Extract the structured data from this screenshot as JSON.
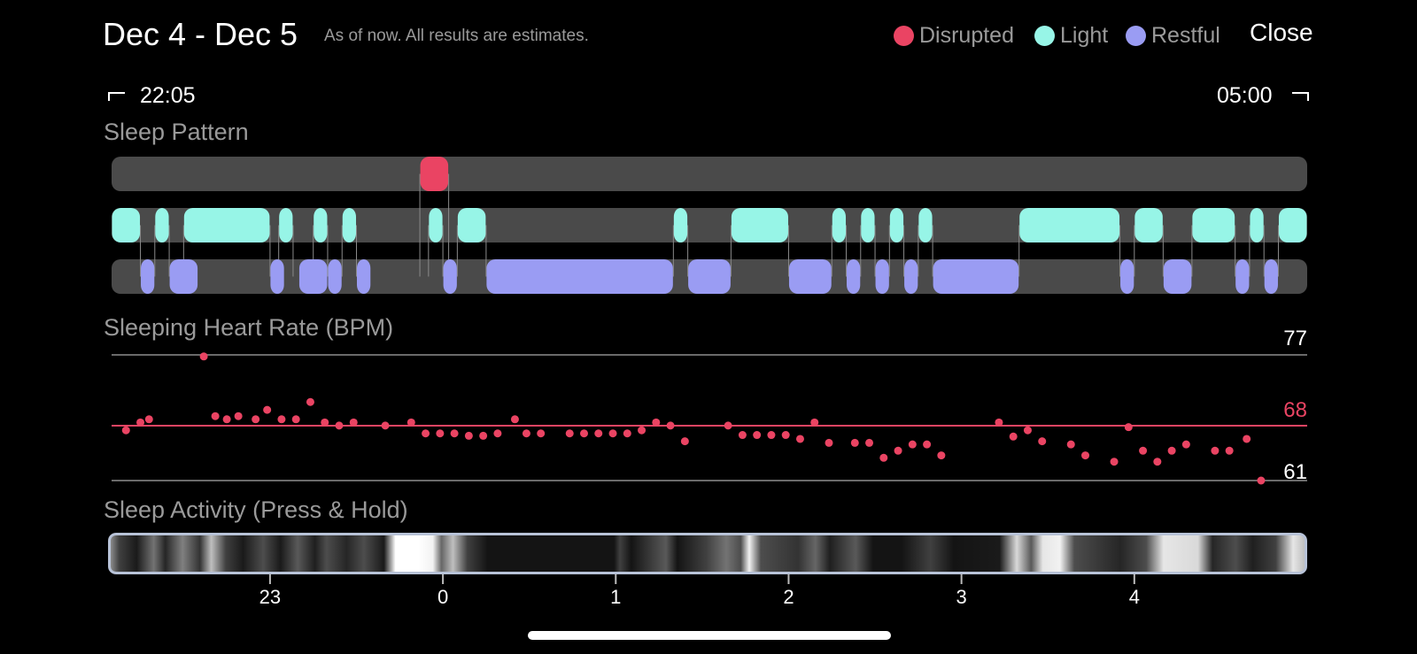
{
  "header": {
    "title": "Dec 4 - Dec 5",
    "subtitle": "As of now. All results are estimates.",
    "close_label": "Close"
  },
  "legend": [
    {
      "label": "Disrupted",
      "color": "#ea4463"
    },
    {
      "label": "Light",
      "color": "#97f5e7"
    },
    {
      "label": "Restful",
      "color": "#9a9cf3"
    }
  ],
  "time_range": {
    "start": "22:05",
    "end": "05:00",
    "start_icon": "bracket-start-icon",
    "end_icon": "bracket-end-icon"
  },
  "sections": {
    "sleep_pattern": "Sleep Pattern",
    "heart_rate": "Sleeping Heart Rate (BPM)",
    "activity": "Sleep Activity (Press & Hold)"
  },
  "sleep_pattern": {
    "start_min": -115,
    "end_min": 300,
    "disrupted": [
      [
        -8,
        2
      ]
    ],
    "light": [
      [
        -115,
        -105
      ],
      [
        -100,
        -95
      ],
      [
        -90,
        -60
      ],
      [
        -57,
        -52
      ],
      [
        -45,
        -40
      ],
      [
        -35,
        -30
      ],
      [
        -5,
        0
      ],
      [
        5,
        15
      ],
      [
        80,
        85
      ],
      [
        100,
        120
      ],
      [
        135,
        140
      ],
      [
        145,
        150
      ],
      [
        155,
        160
      ],
      [
        165,
        170
      ],
      [
        200,
        235
      ],
      [
        240,
        250
      ],
      [
        260,
        275
      ],
      [
        280,
        285
      ],
      [
        290,
        300
      ]
    ],
    "restful": [
      [
        -105,
        -100
      ],
      [
        -95,
        -85
      ],
      [
        -60,
        -55
      ],
      [
        -50,
        -40
      ],
      [
        -40,
        -35
      ],
      [
        -30,
        -25
      ],
      [
        0,
        5
      ],
      [
        15,
        80
      ],
      [
        85,
        100
      ],
      [
        120,
        135
      ],
      [
        140,
        145
      ],
      [
        150,
        155
      ],
      [
        160,
        165
      ],
      [
        170,
        200
      ],
      [
        235,
        240
      ],
      [
        250,
        260
      ],
      [
        275,
        280
      ],
      [
        285,
        290
      ]
    ]
  },
  "heart_rate": {
    "ymax": 77,
    "avg": 68,
    "ymin": 61,
    "ymax_label": "77",
    "avg_label": "68",
    "ymin_label": "61",
    "points": [
      [
        -110,
        67.4
      ],
      [
        -105,
        68.4
      ],
      [
        -102,
        68.8
      ],
      [
        -83,
        76.8
      ],
      [
        -79,
        69.2
      ],
      [
        -75,
        68.8
      ],
      [
        -71,
        69.2
      ],
      [
        -65,
        68.8
      ],
      [
        -61,
        70.0
      ],
      [
        -56,
        68.8
      ],
      [
        -51,
        68.8
      ],
      [
        -46,
        71.0
      ],
      [
        -41,
        68.4
      ],
      [
        -36,
        68.0
      ],
      [
        -31,
        68.4
      ],
      [
        -20,
        68.0
      ],
      [
        -11,
        68.4
      ],
      [
        -6,
        67.0
      ],
      [
        -1,
        67.0
      ],
      [
        4,
        67.0
      ],
      [
        9,
        66.7
      ],
      [
        14,
        66.7
      ],
      [
        19,
        67.0
      ],
      [
        25,
        68.8
      ],
      [
        29,
        67.0
      ],
      [
        34,
        67.0
      ],
      [
        44,
        67.0
      ],
      [
        49,
        67.0
      ],
      [
        54,
        67.0
      ],
      [
        59,
        67.0
      ],
      [
        64,
        67.0
      ],
      [
        69,
        67.4
      ],
      [
        74,
        68.4
      ],
      [
        79,
        68.0
      ],
      [
        84,
        66.0
      ],
      [
        99,
        68.0
      ],
      [
        104,
        66.8
      ],
      [
        109,
        66.8
      ],
      [
        114,
        66.8
      ],
      [
        119,
        66.8
      ],
      [
        124,
        66.3
      ],
      [
        129,
        68.4
      ],
      [
        134,
        65.8
      ],
      [
        143,
        65.8
      ],
      [
        148,
        65.8
      ],
      [
        153,
        63.9
      ],
      [
        158,
        64.8
      ],
      [
        163,
        65.6
      ],
      [
        168,
        65.6
      ],
      [
        173,
        64.2
      ],
      [
        193,
        68.4
      ],
      [
        198,
        66.6
      ],
      [
        203,
        67.4
      ],
      [
        208,
        66.0
      ],
      [
        218,
        65.6
      ],
      [
        223,
        64.2
      ],
      [
        233,
        63.4
      ],
      [
        238,
        67.8
      ],
      [
        243,
        64.8
      ],
      [
        248,
        63.4
      ],
      [
        253,
        64.8
      ],
      [
        258,
        65.6
      ],
      [
        268,
        64.8
      ],
      [
        273,
        64.8
      ],
      [
        279,
        66.3
      ],
      [
        284,
        61.0
      ]
    ]
  },
  "activity": {
    "ticks": [
      {
        "min": -60,
        "label": "23"
      },
      {
        "min": 0,
        "label": "0"
      },
      {
        "min": 60,
        "label": "1"
      },
      {
        "min": 120,
        "label": "2"
      },
      {
        "min": 180,
        "label": "3"
      },
      {
        "min": 240,
        "label": "4"
      }
    ],
    "intensity": [
      [
        -115,
        0.55
      ],
      [
        -112,
        0.25
      ],
      [
        -106,
        0.1
      ],
      [
        -100,
        0.45
      ],
      [
        -96,
        0.15
      ],
      [
        -90,
        0.5
      ],
      [
        -84,
        0.2
      ],
      [
        -80,
        0.75
      ],
      [
        -75,
        0.25
      ],
      [
        -69,
        0.1
      ],
      [
        -62,
        0.3
      ],
      [
        -56,
        0.1
      ],
      [
        -50,
        0.35
      ],
      [
        -44,
        0.12
      ],
      [
        -40,
        0.3
      ],
      [
        -33,
        0.15
      ],
      [
        -27,
        0.3
      ],
      [
        -20,
        0.1
      ],
      [
        -16,
        1.0
      ],
      [
        -8,
        1.0
      ],
      [
        -3,
        0.95
      ],
      [
        0,
        0.4
      ],
      [
        4,
        0.75
      ],
      [
        9,
        0.25
      ],
      [
        16,
        0.08
      ],
      [
        60,
        0.08
      ],
      [
        62,
        0.25
      ],
      [
        66,
        0.08
      ],
      [
        78,
        0.35
      ],
      [
        82,
        0.08
      ],
      [
        92,
        0.25
      ],
      [
        99,
        0.45
      ],
      [
        104,
        0.3
      ],
      [
        107,
        0.95
      ],
      [
        111,
        0.3
      ],
      [
        124,
        0.2
      ],
      [
        130,
        0.4
      ],
      [
        135,
        0.12
      ],
      [
        144,
        0.35
      ],
      [
        150,
        0.08
      ],
      [
        160,
        0.08
      ],
      [
        170,
        0.25
      ],
      [
        178,
        0.08
      ],
      [
        194,
        0.1
      ],
      [
        200,
        0.85
      ],
      [
        205,
        0.35
      ],
      [
        209,
        0.9
      ],
      [
        215,
        0.95
      ],
      [
        220,
        0.3
      ],
      [
        236,
        0.15
      ],
      [
        245,
        0.3
      ],
      [
        251,
        0.9
      ],
      [
        263,
        0.85
      ],
      [
        268,
        0.15
      ],
      [
        276,
        0.3
      ],
      [
        282,
        0.12
      ],
      [
        290,
        0.25
      ],
      [
        296,
        0.9
      ],
      [
        300,
        0.75
      ]
    ]
  }
}
